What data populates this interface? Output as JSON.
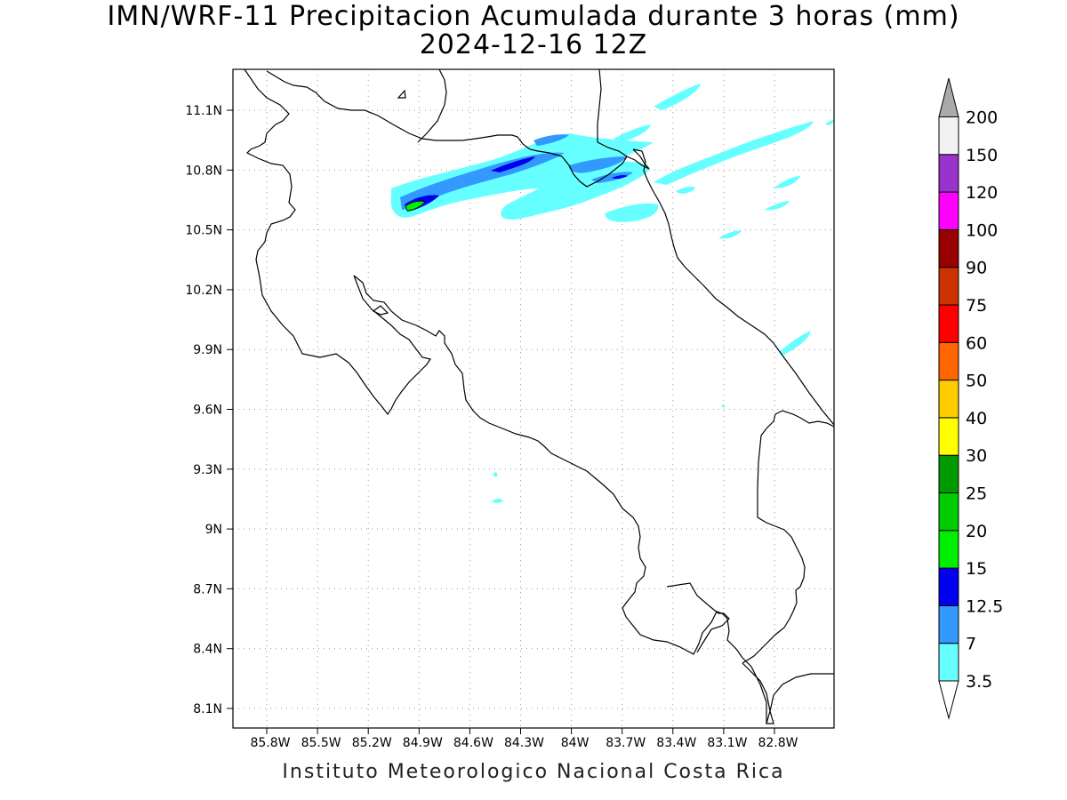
{
  "title": {
    "line1": "IMN/WRF-11 Precipitacion Acumulada durante 3 horas (mm)",
    "line2": "2024-12-16 12Z"
  },
  "footer": "Instituto Meteorologico Nacional Costa Rica",
  "map": {
    "lat_ticks": [
      "11.1N",
      "10.8N",
      "10.5N",
      "10.2N",
      "9.9N",
      "9.6N",
      "9.3N",
      "9N",
      "8.7N",
      "8.4N",
      "8.1N"
    ],
    "lon_ticks": [
      "85.8W",
      "85.5W",
      "85.2W",
      "84.9W",
      "84.6W",
      "84.3W",
      "84W",
      "83.7W",
      "83.4W",
      "83.1W",
      "82.8W"
    ],
    "grid": "dotted",
    "coastline_color": "#000000",
    "precip_colors": {
      "c3_5": "#66ffff",
      "c7": "#3399ff",
      "c12_5": "#0000ee",
      "c15": "#00ee00"
    }
  },
  "colorbar": {
    "units": "mm",
    "levels": [
      {
        "label": "3.5",
        "color": "#66ffff"
      },
      {
        "label": "7",
        "color": "#3399ff"
      },
      {
        "label": "12.5",
        "color": "#0000ee"
      },
      {
        "label": "15",
        "color": "#00ee00"
      },
      {
        "label": "20",
        "color": "#00cc00"
      },
      {
        "label": "25",
        "color": "#009900"
      },
      {
        "label": "30",
        "color": "#ffff00"
      },
      {
        "label": "40",
        "color": "#ffcc00"
      },
      {
        "label": "50",
        "color": "#ff6600"
      },
      {
        "label": "60",
        "color": "#ff0000"
      },
      {
        "label": "75",
        "color": "#cc3300"
      },
      {
        "label": "90",
        "color": "#990000"
      },
      {
        "label": "100",
        "color": "#ff00ff"
      },
      {
        "label": "120",
        "color": "#9933cc"
      },
      {
        "label": "150",
        "color": "#f2f2f2"
      },
      {
        "label": "200",
        "color": "#aaaaaa"
      }
    ],
    "under_color": "#ffffff",
    "over_color": "#aaaaaa"
  }
}
